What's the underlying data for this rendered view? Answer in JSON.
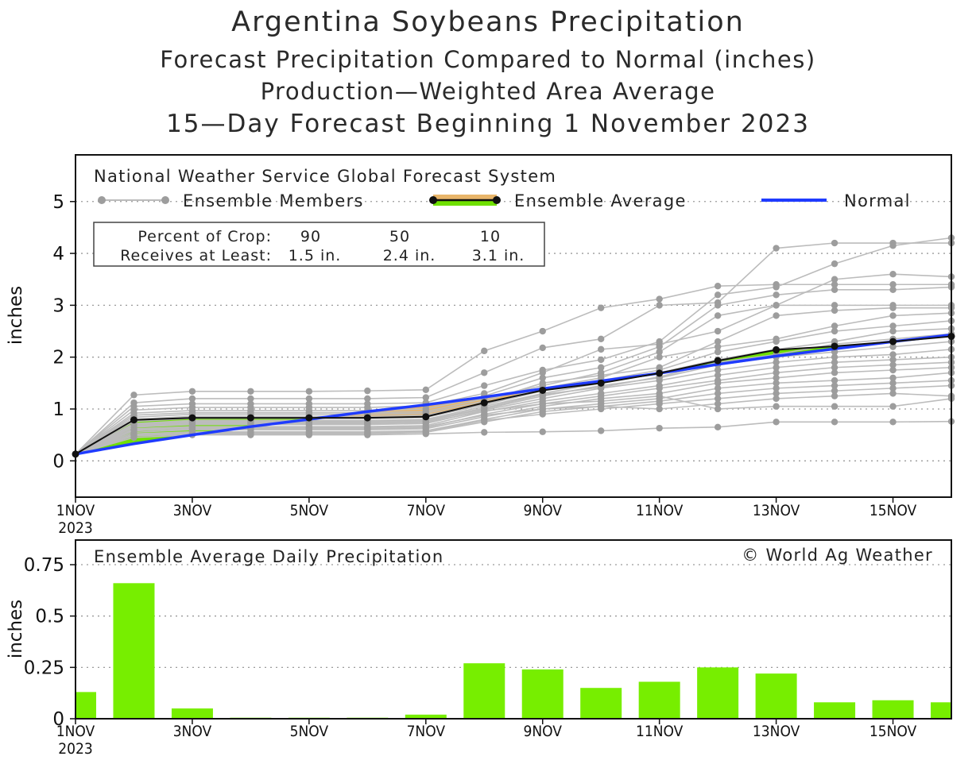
{
  "titles": {
    "title": "Argentina Soybeans Precipitation",
    "subtitle1": "Forecast Precipitation Compared to Normal (inches)",
    "subtitle2": "Production—Weighted Area Average",
    "subtitle3": "15—Day Forecast Beginning 1 November 2023"
  },
  "legend": {
    "header": "National Weather Service Global Forecast System",
    "members": "Ensemble Members",
    "average": "Ensemble Average",
    "normal": "Normal"
  },
  "crop_box": {
    "row1_label": "Percent of Crop:",
    "row1_values": [
      "90",
      "50",
      "10"
    ],
    "row2_label": "Receives at Least:",
    "row2_values": [
      "1.5 in.",
      "2.4 in.",
      "3.1 in."
    ]
  },
  "bottom_labels": {
    "title": "Ensemble Average Daily Precipitation",
    "credit": "© World Ag Weather"
  },
  "chart_data": [
    {
      "type": "line",
      "ylabel": "inches",
      "ylim": [
        -0.7,
        5.9
      ],
      "yticks": [
        0,
        1,
        2,
        3,
        4,
        5
      ],
      "xlim": [
        1,
        16
      ],
      "xticks": [
        {
          "day": 1,
          "label": "1NOV",
          "label2": "2023"
        },
        {
          "day": 3,
          "label": "3NOV"
        },
        {
          "day": 5,
          "label": "5NOV"
        },
        {
          "day": 7,
          "label": "7NOV"
        },
        {
          "day": 9,
          "label": "9NOV"
        },
        {
          "day": 11,
          "label": "11NOV"
        },
        {
          "day": 13,
          "label": "13NOV"
        },
        {
          "day": 15,
          "label": "15NOV"
        }
      ],
      "grid": "horizontal dotted",
      "x": [
        1,
        2,
        3,
        4,
        5,
        6,
        7,
        8,
        9,
        10,
        11,
        12,
        13,
        14,
        15,
        16
      ],
      "ensemble_average": [
        0.13,
        0.79,
        0.83,
        0.83,
        0.83,
        0.83,
        0.85,
        1.12,
        1.36,
        1.5,
        1.69,
        1.93,
        2.14,
        2.21,
        2.3,
        2.4
      ],
      "normal": [
        0.13,
        0.33,
        0.5,
        0.66,
        0.8,
        0.95,
        1.08,
        1.23,
        1.39,
        1.54,
        1.69,
        1.86,
        2.02,
        2.16,
        2.3,
        2.43
      ],
      "ensemble_members": [
        [
          0.13,
          1.27,
          1.34,
          1.34,
          1.34,
          1.35,
          1.37,
          2.12,
          2.5,
          2.95,
          3.12,
          3.37,
          3.4,
          3.4,
          3.4,
          3.4
        ],
        [
          0.13,
          1.12,
          1.2,
          1.2,
          1.2,
          1.2,
          1.22,
          1.7,
          2.18,
          2.35,
          3.0,
          3.05,
          4.1,
          4.2,
          4.2,
          4.2
        ],
        [
          0.13,
          1.05,
          1.1,
          1.1,
          1.1,
          1.1,
          1.12,
          1.45,
          1.75,
          1.95,
          2.3,
          3.2,
          3.35,
          3.8,
          4.15,
          4.3
        ],
        [
          0.13,
          0.98,
          1.03,
          1.03,
          1.03,
          1.03,
          1.06,
          1.3,
          1.7,
          2.15,
          2.25,
          2.5,
          3.0,
          3.5,
          3.6,
          3.55
        ],
        [
          0.13,
          0.92,
          0.97,
          0.97,
          0.97,
          0.97,
          1.0,
          1.25,
          1.6,
          1.8,
          2.2,
          3.0,
          3.2,
          3.3,
          3.3,
          3.35
        ],
        [
          0.13,
          0.88,
          0.93,
          0.93,
          0.93,
          0.93,
          0.95,
          1.2,
          1.45,
          1.7,
          2.1,
          2.8,
          3.0,
          3.0,
          3.0,
          3.0
        ],
        [
          0.13,
          0.84,
          0.9,
          0.9,
          0.9,
          0.9,
          0.92,
          1.15,
          1.5,
          1.65,
          1.8,
          2.3,
          2.8,
          2.9,
          2.95,
          2.95
        ],
        [
          0.13,
          0.8,
          0.86,
          0.86,
          0.86,
          0.86,
          0.88,
          1.1,
          1.4,
          1.6,
          2.0,
          2.2,
          2.35,
          2.6,
          2.8,
          2.85
        ],
        [
          0.13,
          0.76,
          0.82,
          0.82,
          0.82,
          0.82,
          0.84,
          1.08,
          1.35,
          1.55,
          1.75,
          2.1,
          2.3,
          2.5,
          2.6,
          2.7
        ],
        [
          0.13,
          0.72,
          0.78,
          0.78,
          0.78,
          0.78,
          0.8,
          1.05,
          1.3,
          1.5,
          1.7,
          1.95,
          2.15,
          2.3,
          2.5,
          2.55
        ],
        [
          0.13,
          0.68,
          0.74,
          0.74,
          0.74,
          0.74,
          0.76,
          1.0,
          1.25,
          1.45,
          1.6,
          1.85,
          2.0,
          2.1,
          2.2,
          2.3
        ],
        [
          0.13,
          0.65,
          0.7,
          0.7,
          0.7,
          0.7,
          0.72,
          0.98,
          1.2,
          1.4,
          1.55,
          1.75,
          1.9,
          2.0,
          2.05,
          2.15
        ],
        [
          0.13,
          0.62,
          0.66,
          0.66,
          0.66,
          0.66,
          0.68,
          0.95,
          1.15,
          1.3,
          1.45,
          1.65,
          1.8,
          1.9,
          1.95,
          2.0
        ],
        [
          0.13,
          0.58,
          0.62,
          0.62,
          0.62,
          0.62,
          0.64,
          0.9,
          1.1,
          1.25,
          1.4,
          1.55,
          1.7,
          1.8,
          1.85,
          1.9
        ],
        [
          0.13,
          0.55,
          0.6,
          0.6,
          0.6,
          0.6,
          0.62,
          0.85,
          1.05,
          1.2,
          1.3,
          1.5,
          1.6,
          1.7,
          1.75,
          1.8
        ],
        [
          0.13,
          0.52,
          0.56,
          0.56,
          0.56,
          0.56,
          0.58,
          0.8,
          1.0,
          1.1,
          1.2,
          1.4,
          1.5,
          1.55,
          1.6,
          1.7
        ],
        [
          0.13,
          0.48,
          0.52,
          0.52,
          0.52,
          0.52,
          0.55,
          0.75,
          0.95,
          1.05,
          1.15,
          1.3,
          1.4,
          1.45,
          1.5,
          1.55
        ],
        [
          0.13,
          0.5,
          0.54,
          0.54,
          0.54,
          0.54,
          0.56,
          0.78,
          0.9,
          1.0,
          1.1,
          1.2,
          1.3,
          1.35,
          1.4,
          1.45
        ],
        [
          0.13,
          0.6,
          0.64,
          0.64,
          0.64,
          0.64,
          0.66,
          0.88,
          1.0,
          1.05,
          1.0,
          1.1,
          1.2,
          1.25,
          1.3,
          1.25
        ],
        [
          0.13,
          0.66,
          0.72,
          0.72,
          0.72,
          0.72,
          0.74,
          0.96,
          1.1,
          1.15,
          1.25,
          1.0,
          1.05,
          1.05,
          1.05,
          1.2
        ],
        [
          0.13,
          0.45,
          0.5,
          0.5,
          0.5,
          0.5,
          0.52,
          0.55,
          0.56,
          0.58,
          0.63,
          0.65,
          0.75,
          0.75,
          0.75,
          0.76
        ],
        [
          0.13,
          0.7,
          0.76,
          0.76,
          0.76,
          0.76,
          0.78,
          1.02,
          1.28,
          1.42,
          1.62,
          1.9,
          2.05,
          2.25,
          2.35,
          2.45
        ]
      ],
      "legend": [
        "Ensemble Members",
        "Ensemble Average",
        "Normal"
      ],
      "legend_position": "top"
    },
    {
      "type": "bar",
      "title": "Ensemble Average Daily Precipitation",
      "ylabel": "inches",
      "ylim": [
        0,
        0.87
      ],
      "yticks": [
        0,
        0.25,
        0.5,
        0.75
      ],
      "ytick_labels": [
        "0",
        "0.25",
        "0.5",
        "0.75"
      ],
      "xlim": [
        1,
        16
      ],
      "xticks": [
        {
          "day": 1,
          "label": "1NOV",
          "label2": "2023"
        },
        {
          "day": 3,
          "label": "3NOV"
        },
        {
          "day": 5,
          "label": "5NOV"
        },
        {
          "day": 7,
          "label": "7NOV"
        },
        {
          "day": 9,
          "label": "9NOV"
        },
        {
          "day": 11,
          "label": "11NOV"
        },
        {
          "day": 13,
          "label": "13NOV"
        },
        {
          "day": 15,
          "label": "15NOV"
        }
      ],
      "x": [
        1,
        2,
        3,
        4,
        5,
        6,
        7,
        8,
        9,
        10,
        11,
        12,
        13,
        14,
        15,
        16
      ],
      "values": [
        0.13,
        0.66,
        0.05,
        0.005,
        0.005,
        0.005,
        0.02,
        0.27,
        0.24,
        0.15,
        0.18,
        0.25,
        0.22,
        0.08,
        0.09,
        0.08
      ],
      "bar_color": "#77ee00"
    }
  ],
  "colors": {
    "member": "#bcbcbc",
    "member_dot": "#9d9d9d",
    "average": "#111111",
    "normal": "#1f3bff",
    "above_fill": "#6fe000",
    "below_fill": "#e8b56a",
    "bar": "#77ee00",
    "grid": "#9a9a9a"
  }
}
